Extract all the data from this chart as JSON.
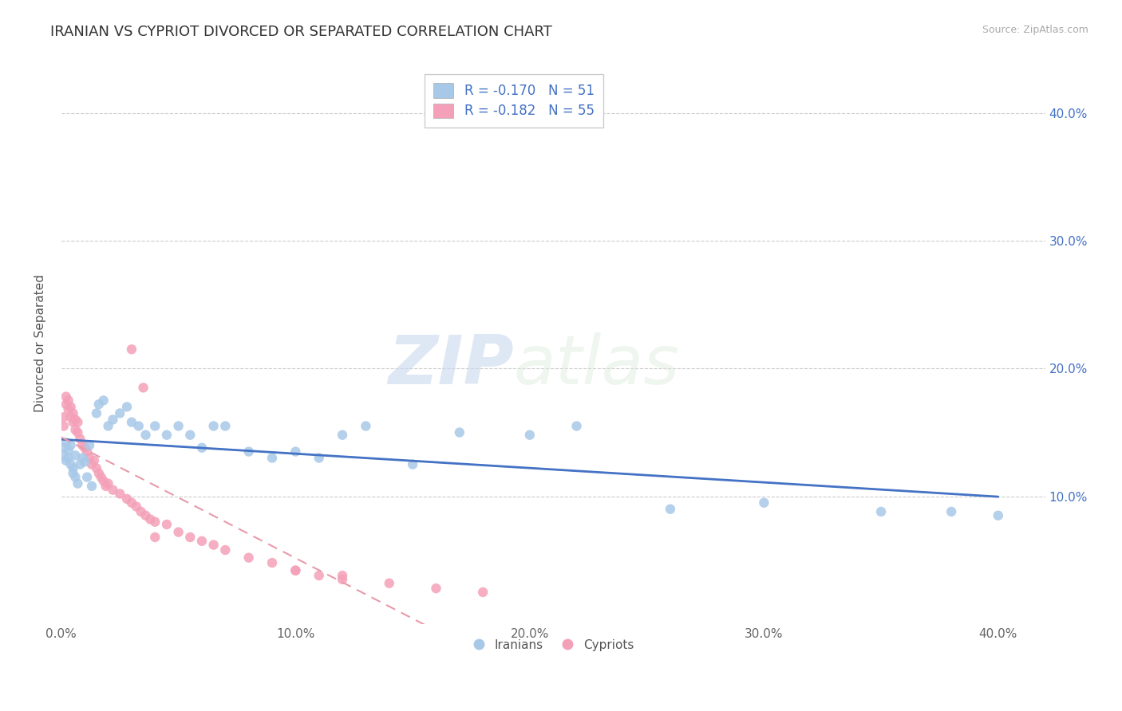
{
  "title": "IRANIAN VS CYPRIOT DIVORCED OR SEPARATED CORRELATION CHART",
  "source_text": "Source: ZipAtlas.com",
  "ylabel": "Divorced or Separated",
  "xlim": [
    0.0,
    0.42
  ],
  "ylim": [
    0.0,
    0.44
  ],
  "xtick_labels": [
    "0.0%",
    "10.0%",
    "20.0%",
    "30.0%",
    "40.0%"
  ],
  "xtick_vals": [
    0.0,
    0.1,
    0.2,
    0.3,
    0.4
  ],
  "ytick_labels": [
    "10.0%",
    "20.0%",
    "30.0%",
    "40.0%"
  ],
  "ytick_vals": [
    0.1,
    0.2,
    0.3,
    0.4
  ],
  "iranian_color": "#a8c8e8",
  "cypriot_color": "#f4a0b8",
  "iranian_line_color": "#4472c4",
  "cypriot_line_color": "#e89aaa",
  "legend_iranian_label": "R = -0.170   N = 51",
  "legend_cypriot_label": "R = -0.182   N = 55",
  "legend_label_iranians": "Iranians",
  "legend_label_cypriots": "Cypriots",
  "watermark_zip": "ZIP",
  "watermark_atlas": "atlas",
  "iranians_x": [
    0.001,
    0.001,
    0.002,
    0.002,
    0.003,
    0.003,
    0.004,
    0.004,
    0.005,
    0.005,
    0.006,
    0.006,
    0.007,
    0.008,
    0.009,
    0.01,
    0.011,
    0.012,
    0.013,
    0.015,
    0.016,
    0.018,
    0.02,
    0.022,
    0.025,
    0.028,
    0.03,
    0.033,
    0.036,
    0.04,
    0.045,
    0.05,
    0.055,
    0.06,
    0.065,
    0.07,
    0.08,
    0.09,
    0.1,
    0.11,
    0.12,
    0.13,
    0.15,
    0.17,
    0.2,
    0.22,
    0.26,
    0.3,
    0.35,
    0.38,
    0.4
  ],
  "iranians_y": [
    0.132,
    0.138,
    0.128,
    0.142,
    0.13,
    0.136,
    0.125,
    0.14,
    0.118,
    0.122,
    0.115,
    0.132,
    0.11,
    0.125,
    0.13,
    0.127,
    0.115,
    0.14,
    0.108,
    0.165,
    0.172,
    0.175,
    0.155,
    0.16,
    0.165,
    0.17,
    0.158,
    0.155,
    0.148,
    0.155,
    0.148,
    0.155,
    0.148,
    0.138,
    0.155,
    0.155,
    0.135,
    0.13,
    0.135,
    0.13,
    0.148,
    0.155,
    0.125,
    0.15,
    0.148,
    0.155,
    0.09,
    0.095,
    0.088,
    0.088,
    0.085
  ],
  "cypriots_x": [
    0.001,
    0.001,
    0.002,
    0.002,
    0.003,
    0.003,
    0.004,
    0.004,
    0.005,
    0.005,
    0.006,
    0.006,
    0.007,
    0.007,
    0.008,
    0.009,
    0.01,
    0.011,
    0.012,
    0.013,
    0.014,
    0.015,
    0.016,
    0.017,
    0.018,
    0.019,
    0.02,
    0.022,
    0.025,
    0.028,
    0.03,
    0.032,
    0.034,
    0.036,
    0.038,
    0.04,
    0.045,
    0.05,
    0.055,
    0.06,
    0.065,
    0.07,
    0.08,
    0.09,
    0.1,
    0.11,
    0.12,
    0.14,
    0.16,
    0.18,
    0.03,
    0.035,
    0.04,
    0.1,
    0.12
  ],
  "cypriots_y": [
    0.155,
    0.162,
    0.172,
    0.178,
    0.168,
    0.175,
    0.162,
    0.17,
    0.158,
    0.165,
    0.152,
    0.16,
    0.15,
    0.158,
    0.145,
    0.14,
    0.138,
    0.135,
    0.13,
    0.125,
    0.128,
    0.122,
    0.118,
    0.115,
    0.112,
    0.108,
    0.11,
    0.105,
    0.102,
    0.098,
    0.095,
    0.092,
    0.088,
    0.085,
    0.082,
    0.08,
    0.078,
    0.072,
    0.068,
    0.065,
    0.062,
    0.058,
    0.052,
    0.048,
    0.042,
    0.038,
    0.035,
    0.032,
    0.028,
    0.025,
    0.215,
    0.185,
    0.068,
    0.042,
    0.038
  ]
}
